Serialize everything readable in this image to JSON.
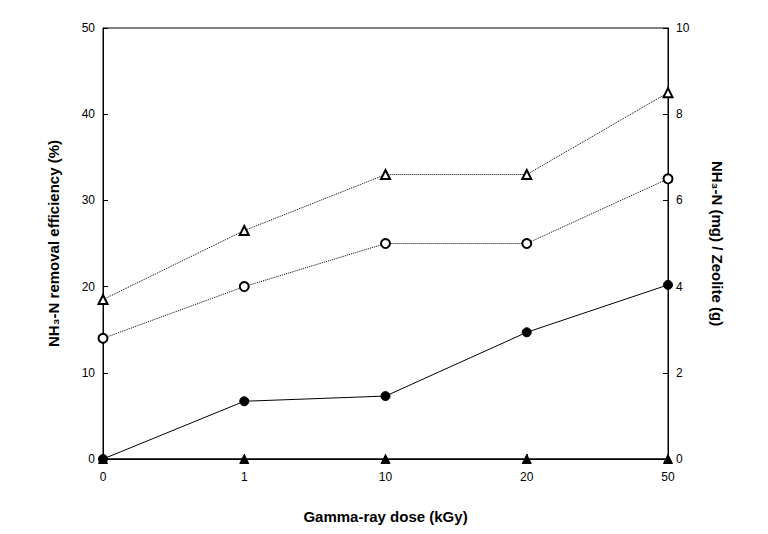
{
  "chart_data": {
    "type": "line",
    "xlabel": "Gamma-ray dose (kGy)",
    "ylabel": "NH₃-N removal efficiency (%)",
    "y2label": "NH₃-N (mg) / Zeolite (g)",
    "categories": [
      "0",
      "1",
      "10",
      "20",
      "50"
    ],
    "ylim": [
      0,
      50
    ],
    "yticks": [
      0,
      10,
      20,
      30,
      40,
      50
    ],
    "y2lim": [
      0,
      10
    ],
    "y2ticks": [
      0,
      2,
      4,
      6,
      8,
      10
    ],
    "grid": false,
    "series": [
      {
        "color": "#000000",
        "marker": "circle",
        "line_style": "solid",
        "axis": "y",
        "values": [
          0,
          6.7,
          7.3,
          14.7,
          20.2
        ]
      },
      {
        "color": "#000000",
        "marker": "triangle",
        "line_style": "solid",
        "axis": "y",
        "values": [
          0,
          0,
          0,
          0,
          0
        ]
      },
      {
        "color": "#000000",
        "marker": "open circle",
        "line_style": "dotted",
        "axis": "y2",
        "values": [
          2.8,
          4.0,
          5.0,
          5.0,
          6.5
        ]
      },
      {
        "color": "#000000",
        "marker": "open triangle",
        "line_style": "dotted",
        "axis": "y2",
        "values": [
          3.7,
          5.3,
          6.6,
          6.6,
          8.5
        ]
      }
    ]
  }
}
